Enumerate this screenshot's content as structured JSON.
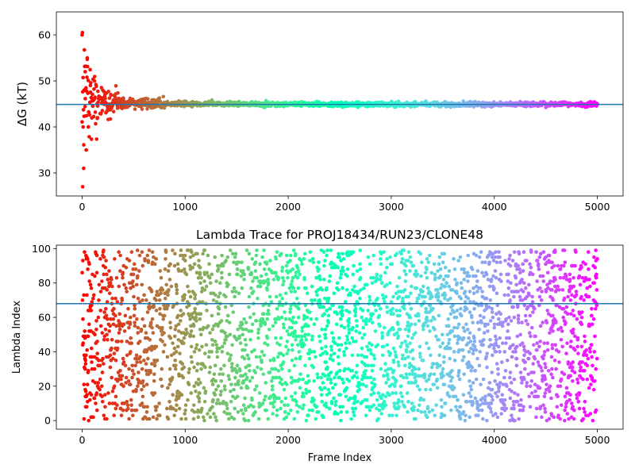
{
  "chart_data": [
    {
      "type": "scatter",
      "title": "",
      "xlabel": "",
      "ylabel": "ΔG (kT)",
      "xlim": [
        -250,
        5250
      ],
      "ylim": [
        25,
        65
      ],
      "xticks": [
        0,
        1000,
        2000,
        3000,
        4000,
        5000
      ],
      "yticks": [
        30,
        40,
        50,
        60
      ],
      "reference_line": {
        "y": 44.9,
        "color": "#1f77b4"
      },
      "colormap": "rainbow (red at frame 0 → violet at frame 5000)",
      "description_of_points": "one point per frame, frames 0–5000; wide scatter 27–60 kT near frame 0 converging to ~45 kT by frame 1500",
      "series": [
        {
          "x": [
            0,
            5,
            10,
            15,
            20,
            30,
            40,
            50,
            60,
            80,
            100,
            120,
            150,
            200,
            250,
            300,
            400,
            500,
            700,
            1000,
            1500,
            2000,
            3000,
            4000,
            5000
          ],
          "y": [
            60,
            27,
            40,
            31,
            48,
            52,
            35,
            55,
            40,
            49,
            46,
            50,
            42,
            48,
            44,
            45,
            46,
            45,
            45.5,
            45.5,
            45,
            45,
            45,
            45,
            45
          ]
        }
      ]
    },
    {
      "type": "scatter",
      "title": "Lambda Trace for PROJ18434/RUN23/CLONE48",
      "xlabel": "Frame Index",
      "ylabel": "Lambda Index",
      "xlim": [
        -250,
        5250
      ],
      "ylim": [
        -5,
        102
      ],
      "xticks": [
        0,
        1000,
        2000,
        3000,
        4000,
        5000
      ],
      "yticks": [
        0,
        20,
        40,
        60,
        80,
        100
      ],
      "reference_line": {
        "y": 68,
        "color": "#1f77b4"
      },
      "colormap": "rainbow (red at frame 0 → violet at frame 5000)",
      "description_of_points": "one point per frame, frames 0–5000; lambda index uniformly spread 0–99"
    }
  ]
}
